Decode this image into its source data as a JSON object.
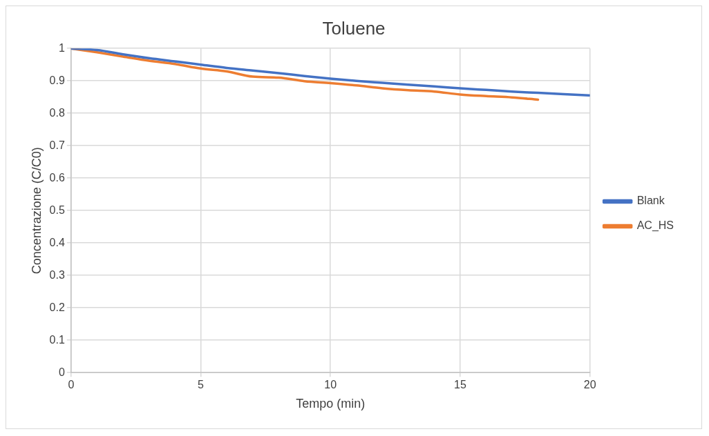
{
  "chart_data": {
    "type": "line",
    "title": "Toluene",
    "xlabel": "Tempo (min)",
    "ylabel": "Concentrazione (C/C0)",
    "xlim": [
      0,
      20
    ],
    "xticks": [
      0,
      5,
      10,
      15,
      20
    ],
    "ylim": [
      0,
      1
    ],
    "yticks": [
      0,
      0.1,
      0.2,
      0.3,
      0.4,
      0.5,
      0.6,
      0.7,
      0.8,
      0.9,
      1
    ],
    "grid": true,
    "legend": "right",
    "marker": "none",
    "line_style": "solid",
    "series": [
      {
        "name": "Blank",
        "color": "#4472c4",
        "x": [
          0,
          1,
          2,
          3,
          4,
          5,
          6,
          7,
          8,
          9,
          10,
          11,
          12,
          13,
          14,
          15,
          16,
          17,
          18,
          19,
          20
        ],
        "values": [
          1.0,
          0.995,
          0.982,
          0.97,
          0.96,
          0.95,
          0.94,
          0.932,
          0.924,
          0.915,
          0.907,
          0.9,
          0.894,
          0.888,
          0.883,
          0.877,
          0.872,
          0.867,
          0.863,
          0.859,
          0.855
        ]
      },
      {
        "name": "AC_HS",
        "color": "#ed7d31",
        "x": [
          0,
          1,
          2,
          3,
          4,
          5,
          6,
          7,
          8,
          9,
          10,
          11,
          12,
          13,
          14,
          15,
          16,
          17,
          18
        ],
        "values": [
          1.0,
          0.988,
          0.975,
          0.962,
          0.952,
          0.938,
          0.929,
          0.913,
          0.91,
          0.899,
          0.893,
          0.886,
          0.877,
          0.871,
          0.867,
          0.858,
          0.853,
          0.849,
          0.842
        ]
      }
    ]
  }
}
